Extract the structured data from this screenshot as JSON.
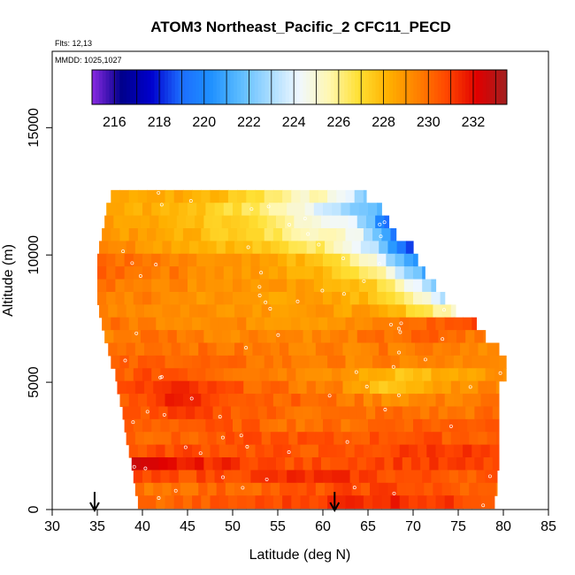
{
  "chart_data": {
    "type": "heatmap",
    "title": "ATOM3 Northeast_Pacific_2 CFC11_PECD",
    "flights_text": "Flts: 12,13",
    "mmdd_text": "MMDD: 1025,1027",
    "xlabel": "Latitude (deg N)",
    "ylabel": "Altitude (m)",
    "xlim": [
      30,
      85
    ],
    "ylim": [
      0,
      18000
    ],
    "x_ticks": [
      30,
      35,
      40,
      45,
      50,
      55,
      60,
      65,
      70,
      75,
      80,
      85
    ],
    "y_ticks": [
      0,
      5000,
      10000,
      15000
    ],
    "colorbar": {
      "min": 215,
      "max": 233.5,
      "tick_values": [
        216,
        218,
        220,
        222,
        224,
        226,
        228,
        230,
        232
      ],
      "colors": [
        "#8a2be2",
        "#00008b",
        "#0000cd",
        "#1c6cff",
        "#1e90ff",
        "#5cbcff",
        "#a8dcff",
        "#f0f8ff",
        "#fff7b0",
        "#ffe033",
        "#ffb000",
        "#ff8000",
        "#ff4500",
        "#e00000",
        "#a02020"
      ]
    },
    "flight_markers_lat": [
      34.7,
      61.3
    ],
    "cross_section": [
      {
        "alt": 12300,
        "lat_start": 36.5,
        "lat_end": 64.8,
        "values": [
          228.5,
          228.6,
          228.2,
          227.9,
          226.8,
          225.5,
          225,
          222
        ]
      },
      {
        "alt": 11800,
        "lat_start": 36,
        "lat_end": 66.5,
        "values": [
          228.5,
          228.2,
          228,
          227,
          226,
          224.5,
          223,
          221
        ]
      },
      {
        "alt": 11300,
        "lat_start": 35.8,
        "lat_end": 67.3,
        "values": [
          228.6,
          228.4,
          228,
          227.2,
          226.2,
          225.1,
          224,
          218.5
        ]
      },
      {
        "alt": 10800,
        "lat_start": 35.5,
        "lat_end": 68.1,
        "values": [
          229,
          228.5,
          228.2,
          227.4,
          226.5,
          225.6,
          224.6,
          219
        ]
      },
      {
        "alt": 10300,
        "lat_start": 35.2,
        "lat_end": 70,
        "values": [
          229.6,
          229,
          228.4,
          227.9,
          227,
          226.2,
          223.5,
          217
        ]
      },
      {
        "alt": 9800,
        "lat_start": 35,
        "lat_end": 70.5,
        "values": [
          230.2,
          229.6,
          229,
          228.7,
          228.3,
          227.2,
          224.5,
          219.5
        ]
      },
      {
        "alt": 9300,
        "lat_start": 35,
        "lat_end": 71.3,
        "values": [
          230.3,
          229.8,
          229.4,
          228.8,
          228.4,
          227.7,
          225.8,
          220.5
        ]
      },
      {
        "alt": 8800,
        "lat_start": 35,
        "lat_end": 72.5,
        "values": [
          229.8,
          229.6,
          229.2,
          229,
          228.6,
          228.2,
          226.5,
          221.5
        ]
      },
      {
        "alt": 8300,
        "lat_start": 35,
        "lat_end": 73.5,
        "values": [
          229.5,
          229.4,
          229,
          228.8,
          228.6,
          228.3,
          227,
          222.5
        ]
      },
      {
        "alt": 7800,
        "lat_start": 35.2,
        "lat_end": 74.7,
        "values": [
          229.6,
          229.3,
          229.2,
          229.1,
          228.8,
          228.7,
          227.5,
          225
        ]
      },
      {
        "alt": 7300,
        "lat_start": 35.5,
        "lat_end": 77,
        "values": [
          229.8,
          229.5,
          229.3,
          229.1,
          229,
          229.2,
          230.2,
          230.8
        ]
      },
      {
        "alt": 6800,
        "lat_start": 35.8,
        "lat_end": 78,
        "values": [
          229.6,
          230,
          229.4,
          229.6,
          229.3,
          229.8,
          230.2,
          229.5
        ]
      },
      {
        "alt": 6300,
        "lat_start": 36.2,
        "lat_end": 79.5,
        "values": [
          229.9,
          230.1,
          229.7,
          229.6,
          229.5,
          229.7,
          229.8,
          229.2
        ]
      },
      {
        "alt": 5800,
        "lat_start": 36.5,
        "lat_end": 80.3,
        "values": [
          230,
          230.4,
          229.9,
          229.7,
          229.5,
          229.4,
          229.3,
          229
        ]
      },
      {
        "alt": 5300,
        "lat_start": 37,
        "lat_end": 80.3,
        "values": [
          230.3,
          230.8,
          230,
          229.6,
          229.2,
          227.5,
          228.5,
          229.3
        ]
      },
      {
        "alt": 4800,
        "lat_start": 37.2,
        "lat_end": 79.5,
        "values": [
          230.5,
          231.3,
          230.5,
          229.8,
          229.4,
          227.3,
          229,
          229.6
        ]
      },
      {
        "alt": 4300,
        "lat_start": 37.5,
        "lat_end": 79.5,
        "values": [
          230.4,
          231.6,
          230.7,
          230.2,
          229.8,
          229.2,
          229.5,
          229.8
        ]
      },
      {
        "alt": 3800,
        "lat_start": 37.8,
        "lat_end": 79.5,
        "values": [
          230.4,
          230.9,
          230.5,
          230,
          229.8,
          230,
          229.7,
          230
        ]
      },
      {
        "alt": 3300,
        "lat_start": 38,
        "lat_end": 79.5,
        "values": [
          230.2,
          230.4,
          230.4,
          230,
          229.9,
          230.4,
          230.3,
          230.8
        ]
      },
      {
        "alt": 2800,
        "lat_start": 38.2,
        "lat_end": 79.5,
        "values": [
          230.3,
          230.1,
          230.5,
          230.6,
          230.4,
          230.7,
          230.5,
          230.3
        ]
      },
      {
        "alt": 2300,
        "lat_start": 38.5,
        "lat_end": 79.5,
        "values": [
          230.5,
          230.8,
          230.6,
          230.5,
          230.4,
          230.9,
          231.3,
          230.6
        ]
      },
      {
        "alt": 1800,
        "lat_start": 38.8,
        "lat_end": 79.5,
        "values": [
          232.2,
          231.6,
          231.2,
          230.5,
          230.9,
          231,
          230.9,
          230.7
        ]
      },
      {
        "alt": 1300,
        "lat_start": 39,
        "lat_end": 79.3,
        "values": [
          230.6,
          230.7,
          230.9,
          231.3,
          231.2,
          230.6,
          230.5,
          230.4
        ]
      },
      {
        "alt": 800,
        "lat_start": 39.2,
        "lat_end": 79.3,
        "values": [
          229.8,
          230,
          230.2,
          230.4,
          230.7,
          230.9,
          230.3,
          230
        ]
      },
      {
        "alt": 300,
        "lat_start": 39.5,
        "lat_end": 79,
        "values": [
          230,
          230.2,
          230.5,
          230.9,
          231.4,
          231.5,
          231,
          230.6
        ]
      }
    ]
  }
}
